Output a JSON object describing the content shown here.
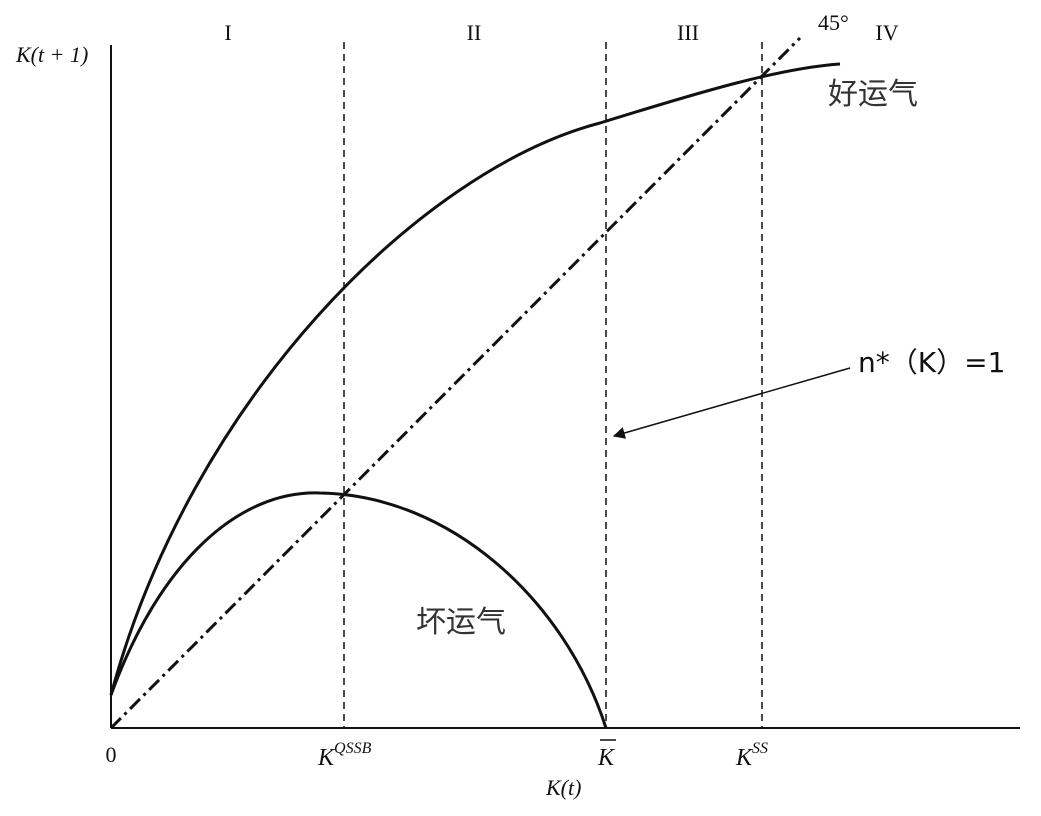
{
  "regions": [
    "I",
    "II",
    "III",
    "IV"
  ],
  "angle_label": "45°",
  "y_axis_label": "K(t + 1)",
  "x_axis_label": "K(t)",
  "origin_label": "0",
  "curves": {
    "good": "好运气",
    "bad": "坏运气"
  },
  "annotation": "n*（K）=1",
  "x_marks": [
    {
      "base": "K",
      "sup": "QSSB"
    },
    {
      "base": "K"
    },
    {
      "base": "K",
      "sup": "SS"
    }
  ]
}
